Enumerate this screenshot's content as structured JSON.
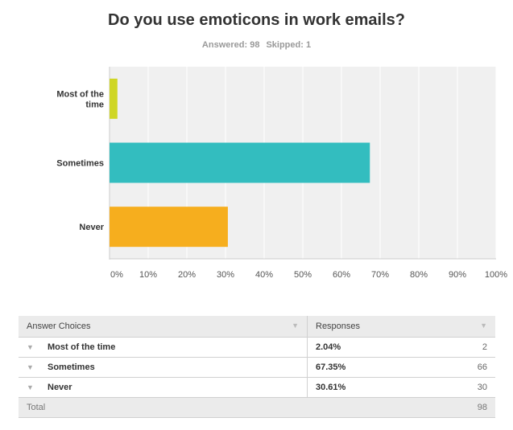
{
  "chart_data": {
    "type": "bar",
    "orientation": "horizontal",
    "title": "Do you use emoticons in work emails?",
    "answered": "Answered: 98",
    "skipped": "Skipped: 1",
    "categories": [
      "Most of the time",
      "Sometimes",
      "Never"
    ],
    "values": [
      2.04,
      67.35,
      30.61
    ],
    "colors": [
      "#cfd624",
      "#33bdbf",
      "#f6ae1e"
    ],
    "xticks": [
      "0%",
      "10%",
      "20%",
      "30%",
      "40%",
      "50%",
      "60%",
      "70%",
      "80%",
      "90%",
      "100%"
    ],
    "xlim": [
      0,
      100
    ],
    "grid": true
  },
  "table": {
    "headers": [
      "Answer Choices",
      "Responses"
    ],
    "rows": [
      {
        "choice": "Most of the time",
        "pct": "2.04%",
        "count": "2"
      },
      {
        "choice": "Sometimes",
        "pct": "67.35%",
        "count": "66"
      },
      {
        "choice": "Never",
        "pct": "30.61%",
        "count": "30"
      }
    ],
    "total_label": "Total",
    "total": "98"
  }
}
